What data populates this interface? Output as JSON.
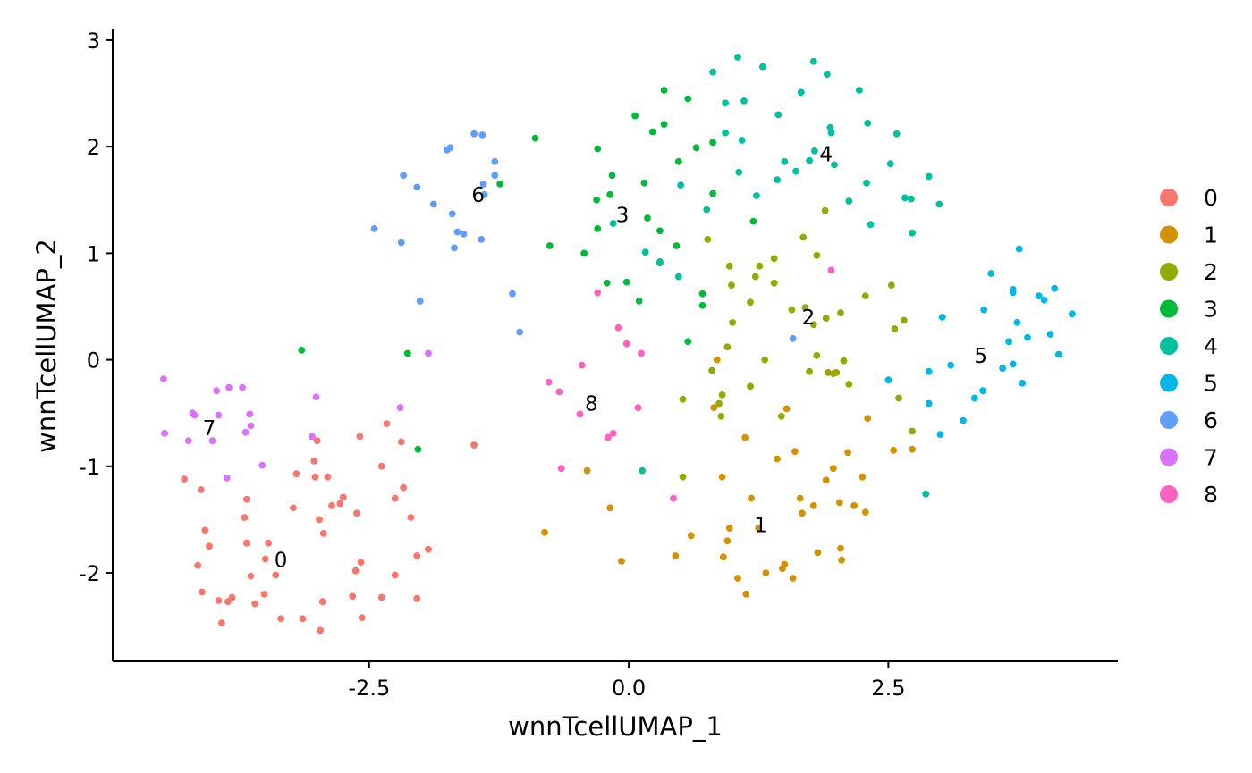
{
  "chart_data": {
    "type": "scatter",
    "xlabel": "wnnTcellUMAP_1",
    "ylabel": "wnnTcellUMAP_2",
    "xlim": [
      -4.97,
      4.71
    ],
    "ylim": [
      -2.83,
      3.1
    ],
    "xticks": [
      -2.5,
      0.0,
      2.5
    ],
    "xtick_labels": [
      "-2.5",
      "0.0",
      "2.5"
    ],
    "yticks": [
      -2,
      -1,
      0,
      1,
      2,
      3
    ],
    "ytick_labels": [
      "-2",
      "-1",
      "0",
      "1",
      "2",
      "3"
    ],
    "grid": false,
    "legend_position": "right",
    "colors": {
      "0": "#F8766D",
      "1": "#D39200",
      "2": "#93AA00",
      "3": "#00BA38",
      "4": "#00C19F",
      "5": "#00B9E3",
      "6": "#619CFF",
      "7": "#DB72FB",
      "8": "#FF61C3"
    },
    "series": [
      {
        "name": "0",
        "color": "#F8766D",
        "label_pos": [
          -3.35,
          -1.88
        ],
        "points": [
          [
            -4.28,
            -1.12
          ],
          [
            -4.12,
            -1.22
          ],
          [
            -4.08,
            -1.6
          ],
          [
            -4.04,
            -1.75
          ],
          [
            -4.15,
            -1.93
          ],
          [
            -4.11,
            -2.18
          ],
          [
            -3.95,
            -2.26
          ],
          [
            -3.92,
            -2.47
          ],
          [
            -3.82,
            -2.23
          ],
          [
            -3.68,
            -1.31
          ],
          [
            -3.7,
            -1.48
          ],
          [
            -3.68,
            -1.72
          ],
          [
            -3.64,
            -2.03
          ],
          [
            -3.5,
            -1.87
          ],
          [
            -3.47,
            -1.72
          ],
          [
            -3.51,
            -2.2
          ],
          [
            -3.35,
            -2.43
          ],
          [
            -3.23,
            -1.39
          ],
          [
            -3.14,
            -2.43
          ],
          [
            -3.02,
            -1.1
          ],
          [
            -3.0,
            -0.76
          ],
          [
            -3.03,
            -0.95
          ],
          [
            -2.98,
            -1.5
          ],
          [
            -2.94,
            -1.63
          ],
          [
            -2.95,
            -2.27
          ],
          [
            -2.97,
            -2.54
          ],
          [
            -2.86,
            -1.37
          ],
          [
            -2.9,
            -1.1
          ],
          [
            -2.75,
            -1.29
          ],
          [
            -2.66,
            -2.22
          ],
          [
            -2.62,
            -1.44
          ],
          [
            -2.63,
            -1.98
          ],
          [
            -2.58,
            -1.9
          ],
          [
            -2.57,
            -2.42
          ],
          [
            -2.59,
            -0.72
          ],
          [
            -2.38,
            -1.0
          ],
          [
            -2.38,
            -2.23
          ],
          [
            -2.33,
            -0.6
          ],
          [
            -2.25,
            -1.3
          ],
          [
            -2.25,
            -2.02
          ],
          [
            -2.19,
            -0.77
          ],
          [
            -2.17,
            -1.2
          ],
          [
            -2.1,
            -1.48
          ],
          [
            -2.04,
            -1.84
          ],
          [
            -2.04,
            -2.24
          ],
          [
            -1.93,
            -1.78
          ],
          [
            -1.49,
            -0.8
          ],
          [
            -3.4,
            -2.02
          ],
          [
            -3.2,
            -1.07
          ],
          [
            -2.78,
            -1.35
          ],
          [
            -3.6,
            -2.29
          ],
          [
            -3.86,
            -2.27
          ]
        ]
      },
      {
        "name": "1",
        "color": "#D39200",
        "label_pos": [
          1.27,
          -1.55
        ],
        "points": [
          [
            -0.81,
            -1.62
          ],
          [
            -0.4,
            -1.04
          ],
          [
            -0.18,
            -1.39
          ],
          [
            -0.07,
            -1.89
          ],
          [
            0.45,
            -1.84
          ],
          [
            0.6,
            -1.65
          ],
          [
            0.82,
            -0.45
          ],
          [
            0.85,
            0.0
          ],
          [
            0.9,
            -1.1
          ],
          [
            0.91,
            -1.85
          ],
          [
            0.95,
            -1.7
          ],
          [
            0.97,
            -1.58
          ],
          [
            1.05,
            -2.05
          ],
          [
            1.12,
            -0.73
          ],
          [
            1.13,
            -2.2
          ],
          [
            1.18,
            -1.3
          ],
          [
            1.25,
            -1.58
          ],
          [
            1.32,
            -2.0
          ],
          [
            1.43,
            -0.93
          ],
          [
            1.48,
            -1.96
          ],
          [
            1.5,
            -1.92
          ],
          [
            1.52,
            -0.46
          ],
          [
            1.58,
            -2.05
          ],
          [
            1.6,
            -0.86
          ],
          [
            1.65,
            -1.3
          ],
          [
            1.67,
            -1.44
          ],
          [
            1.78,
            -1.37
          ],
          [
            1.82,
            -1.81
          ],
          [
            1.9,
            -1.13
          ],
          [
            1.97,
            -1.02
          ],
          [
            2.03,
            -1.34
          ],
          [
            2.04,
            -1.77
          ],
          [
            2.05,
            -1.88
          ],
          [
            2.11,
            -0.87
          ],
          [
            2.17,
            -1.37
          ],
          [
            2.25,
            -1.1
          ],
          [
            2.28,
            -1.43
          ],
          [
            2.3,
            -0.55
          ],
          [
            2.55,
            -0.85
          ],
          [
            2.73,
            -0.84
          ],
          [
            1.97,
            -0.13
          ]
        ]
      },
      {
        "name": "2",
        "color": "#93AA00",
        "label_pos": [
          1.73,
          0.4
        ],
        "points": [
          [
            0.52,
            -0.37
          ],
          [
            0.52,
            -1.1
          ],
          [
            0.76,
            1.13
          ],
          [
            0.8,
            -0.1
          ],
          [
            0.87,
            -0.41
          ],
          [
            0.89,
            -0.53
          ],
          [
            0.9,
            -0.33
          ],
          [
            0.95,
            0.12
          ],
          [
            0.97,
            0.88
          ],
          [
            0.99,
            0.7
          ],
          [
            1.0,
            0.35
          ],
          [
            1.17,
            0.54
          ],
          [
            1.17,
            -0.25
          ],
          [
            1.22,
            0.78
          ],
          [
            1.26,
            0.88
          ],
          [
            1.31,
            0.0
          ],
          [
            1.4,
            0.72
          ],
          [
            1.4,
            0.95
          ],
          [
            1.47,
            -0.53
          ],
          [
            1.57,
            0.47
          ],
          [
            1.68,
            1.15
          ],
          [
            1.7,
            0.49
          ],
          [
            1.74,
            -0.11
          ],
          [
            1.78,
            0.33
          ],
          [
            1.81,
            0.98
          ],
          [
            1.81,
            0.04
          ],
          [
            1.89,
            1.4
          ],
          [
            1.9,
            0.39
          ],
          [
            1.92,
            -0.12
          ],
          [
            2.0,
            -0.12
          ],
          [
            2.04,
            0.44
          ],
          [
            2.07,
            -0.01
          ],
          [
            2.12,
            -0.23
          ],
          [
            2.28,
            0.6
          ],
          [
            2.53,
            0.7
          ],
          [
            2.56,
            0.29
          ],
          [
            2.6,
            -0.36
          ],
          [
            2.65,
            0.37
          ],
          [
            2.73,
            -0.67
          ]
        ]
      },
      {
        "name": "3",
        "color": "#00BA38",
        "label_pos": [
          -0.06,
          1.36
        ],
        "points": [
          [
            -0.9,
            2.08
          ],
          [
            -0.76,
            1.07
          ],
          [
            -0.43,
            1.0
          ],
          [
            -0.3,
            1.98
          ],
          [
            -0.31,
            1.5
          ],
          [
            -0.3,
            1.23
          ],
          [
            -0.21,
            0.72
          ],
          [
            -0.18,
            1.55
          ],
          [
            -0.16,
            1.73
          ],
          [
            -0.02,
            0.73
          ],
          [
            0.06,
            2.29
          ],
          [
            0.1,
            0.55
          ],
          [
            0.15,
            1.66
          ],
          [
            0.18,
            1.33
          ],
          [
            0.23,
            2.14
          ],
          [
            0.3,
            0.91
          ],
          [
            0.3,
            1.21
          ],
          [
            0.34,
            2.21
          ],
          [
            0.34,
            2.53
          ],
          [
            0.46,
            1.07
          ],
          [
            0.48,
            1.86
          ],
          [
            0.57,
            0.17
          ],
          [
            0.57,
            2.45
          ],
          [
            0.65,
            1.99
          ],
          [
            0.71,
            0.62
          ],
          [
            0.71,
            0.51
          ],
          [
            0.81,
            1.56
          ],
          [
            0.81,
            2.04
          ],
          [
            1.2,
            1.3
          ],
          [
            -1.24,
            1.65
          ],
          [
            -2.13,
            0.06
          ],
          [
            -3.15,
            0.09
          ],
          [
            -2.03,
            -0.84
          ]
        ]
      },
      {
        "name": "4",
        "color": "#00C19F",
        "label_pos": [
          1.9,
          1.93
        ],
        "points": [
          [
            -0.15,
            1.28
          ],
          [
            0.13,
            -1.04
          ],
          [
            0.16,
            1.01
          ],
          [
            0.3,
            0.92
          ],
          [
            0.48,
            0.78
          ],
          [
            0.5,
            1.64
          ],
          [
            0.75,
            1.41
          ],
          [
            0.81,
            2.7
          ],
          [
            0.93,
            2.13
          ],
          [
            0.93,
            2.41
          ],
          [
            1.05,
            2.84
          ],
          [
            1.06,
            1.76
          ],
          [
            1.09,
            2.06
          ],
          [
            1.11,
            2.43
          ],
          [
            1.23,
            1.54
          ],
          [
            1.29,
            2.75
          ],
          [
            1.43,
            1.69
          ],
          [
            1.44,
            2.3
          ],
          [
            1.5,
            1.86
          ],
          [
            1.61,
            1.77
          ],
          [
            1.66,
            2.51
          ],
          [
            1.74,
            1.87
          ],
          [
            1.78,
            2.8
          ],
          [
            1.79,
            1.96
          ],
          [
            1.91,
            2.68
          ],
          [
            1.94,
            2.18
          ],
          [
            1.95,
            2.13
          ],
          [
            1.98,
            1.83
          ],
          [
            2.12,
            1.49
          ],
          [
            2.22,
            2.53
          ],
          [
            2.29,
            1.66
          ],
          [
            2.3,
            2.22
          ],
          [
            2.33,
            1.27
          ],
          [
            2.52,
            1.84
          ],
          [
            2.58,
            2.12
          ],
          [
            2.66,
            1.52
          ],
          [
            2.72,
            1.51
          ],
          [
            2.73,
            1.19
          ],
          [
            2.89,
            1.72
          ],
          [
            2.99,
            1.46
          ],
          [
            2.86,
            -1.26
          ]
        ]
      },
      {
        "name": "5",
        "color": "#00B9E3",
        "label_pos": [
          3.39,
          0.04
        ],
        "points": [
          [
            2.5,
            -0.19
          ],
          [
            2.89,
            -0.11
          ],
          [
            2.89,
            -0.41
          ],
          [
            3.0,
            -0.7
          ],
          [
            3.02,
            0.4
          ],
          [
            3.1,
            -0.05
          ],
          [
            3.22,
            -0.57
          ],
          [
            3.33,
            -0.36
          ],
          [
            3.41,
            -0.29
          ],
          [
            3.42,
            0.47
          ],
          [
            3.49,
            0.81
          ],
          [
            3.6,
            -0.08
          ],
          [
            3.66,
            0.17
          ],
          [
            3.7,
            0.66
          ],
          [
            3.7,
            0.63
          ],
          [
            3.7,
            -0.04
          ],
          [
            3.74,
            0.35
          ],
          [
            3.76,
            1.04
          ],
          [
            3.79,
            -0.22
          ],
          [
            3.84,
            0.21
          ],
          [
            3.95,
            0.6
          ],
          [
            4.0,
            0.56
          ],
          [
            4.06,
            0.24
          ],
          [
            4.1,
            0.67
          ],
          [
            4.14,
            0.05
          ],
          [
            4.27,
            0.43
          ]
        ]
      },
      {
        "name": "6",
        "color": "#619CFF",
        "label_pos": [
          -1.45,
          1.55
        ],
        "points": [
          [
            -2.45,
            1.23
          ],
          [
            -2.19,
            1.1
          ],
          [
            -2.17,
            1.73
          ],
          [
            -2.04,
            1.62
          ],
          [
            -2.01,
            0.55
          ],
          [
            -1.88,
            1.46
          ],
          [
            -1.75,
            1.97
          ],
          [
            -1.72,
            1.99
          ],
          [
            -1.7,
            1.37
          ],
          [
            -1.68,
            1.05
          ],
          [
            -1.65,
            1.2
          ],
          [
            -1.59,
            1.18
          ],
          [
            -1.49,
            2.12
          ],
          [
            -1.42,
            1.13
          ],
          [
            -1.41,
            2.11
          ],
          [
            -1.4,
            1.65
          ],
          [
            -1.39,
            1.55
          ],
          [
            -1.29,
            1.73
          ],
          [
            -1.29,
            1.86
          ],
          [
            -1.12,
            0.62
          ],
          [
            -1.05,
            0.26
          ],
          [
            1.58,
            0.2
          ]
        ]
      },
      {
        "name": "7",
        "color": "#DB72FB",
        "label_pos": [
          -4.04,
          -0.64
        ],
        "points": [
          [
            -4.48,
            -0.18
          ],
          [
            -4.47,
            -0.69
          ],
          [
            -4.24,
            -0.76
          ],
          [
            -4.2,
            -0.5
          ],
          [
            -4.18,
            -0.52
          ],
          [
            -4.01,
            -0.76
          ],
          [
            -3.97,
            -0.29
          ],
          [
            -3.95,
            -0.52
          ],
          [
            -3.87,
            -1.11
          ],
          [
            -3.85,
            -0.26
          ],
          [
            -3.72,
            -0.26
          ],
          [
            -3.65,
            -0.51
          ],
          [
            -3.64,
            -0.62
          ],
          [
            -3.69,
            -0.68
          ],
          [
            -3.53,
            -0.99
          ],
          [
            -3.05,
            -0.72
          ],
          [
            -3.01,
            -0.35
          ],
          [
            -2.2,
            -0.45
          ],
          [
            -1.93,
            0.06
          ]
        ]
      },
      {
        "name": "8",
        "color": "#FF61C3",
        "label_pos": [
          -0.36,
          -0.41
        ],
        "points": [
          [
            -0.3,
            0.63
          ],
          [
            -0.2,
            -0.73
          ],
          [
            -0.15,
            -0.69
          ],
          [
            -0.1,
            0.3
          ],
          [
            -0.02,
            0.15
          ],
          [
            0.09,
            -0.45
          ],
          [
            0.12,
            0.06
          ],
          [
            0.43,
            -1.3
          ],
          [
            -0.77,
            -0.21
          ],
          [
            -0.67,
            -0.3
          ],
          [
            -0.45,
            -0.05
          ],
          [
            -0.47,
            -0.51
          ],
          [
            -0.65,
            -1.02
          ],
          [
            1.95,
            0.84
          ]
        ]
      }
    ]
  }
}
